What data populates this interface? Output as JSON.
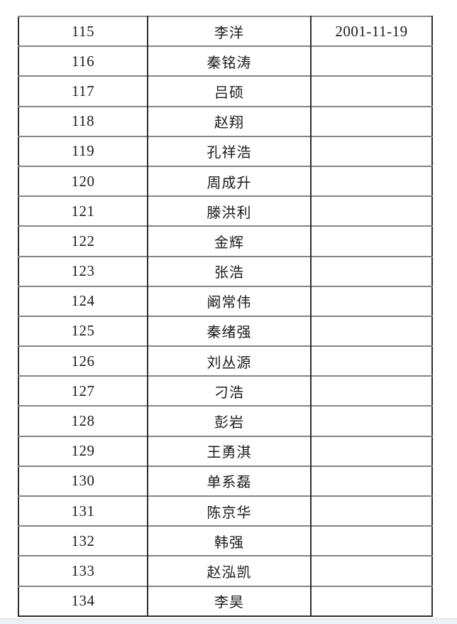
{
  "document": {
    "table": {
      "rows": [
        {
          "num": "115",
          "name": "李洋",
          "date": "2001-11-19"
        },
        {
          "num": "116",
          "name": "秦铭涛",
          "date": ""
        },
        {
          "num": "117",
          "name": "吕硕",
          "date": ""
        },
        {
          "num": "118",
          "name": "赵翔",
          "date": ""
        },
        {
          "num": "119",
          "name": "孔祥浩",
          "date": ""
        },
        {
          "num": "120",
          "name": "周成升",
          "date": ""
        },
        {
          "num": "121",
          "name": "滕洪利",
          "date": ""
        },
        {
          "num": "122",
          "name": "金辉",
          "date": ""
        },
        {
          "num": "123",
          "name": "张浩",
          "date": ""
        },
        {
          "num": "124",
          "name": "阚常伟",
          "date": ""
        },
        {
          "num": "125",
          "name": "秦绪强",
          "date": ""
        },
        {
          "num": "126",
          "name": "刘丛源",
          "date": ""
        },
        {
          "num": "127",
          "name": "刁浩",
          "date": ""
        },
        {
          "num": "128",
          "name": "彭岩",
          "date": ""
        },
        {
          "num": "129",
          "name": "王勇淇",
          "date": ""
        },
        {
          "num": "130",
          "name": "单系磊",
          "date": ""
        },
        {
          "num": "131",
          "name": "陈京华",
          "date": ""
        },
        {
          "num": "132",
          "name": "韩强",
          "date": ""
        },
        {
          "num": "133",
          "name": "赵泓凯",
          "date": ""
        },
        {
          "num": "134",
          "name": "李昊",
          "date": ""
        }
      ]
    },
    "colors": {
      "page_bg": "#ffffff",
      "border_dark": "#2e2e2e",
      "border_light": "#848484",
      "text": "#1c1c1c",
      "bottom_edge_bg": "#edf1f6"
    }
  }
}
